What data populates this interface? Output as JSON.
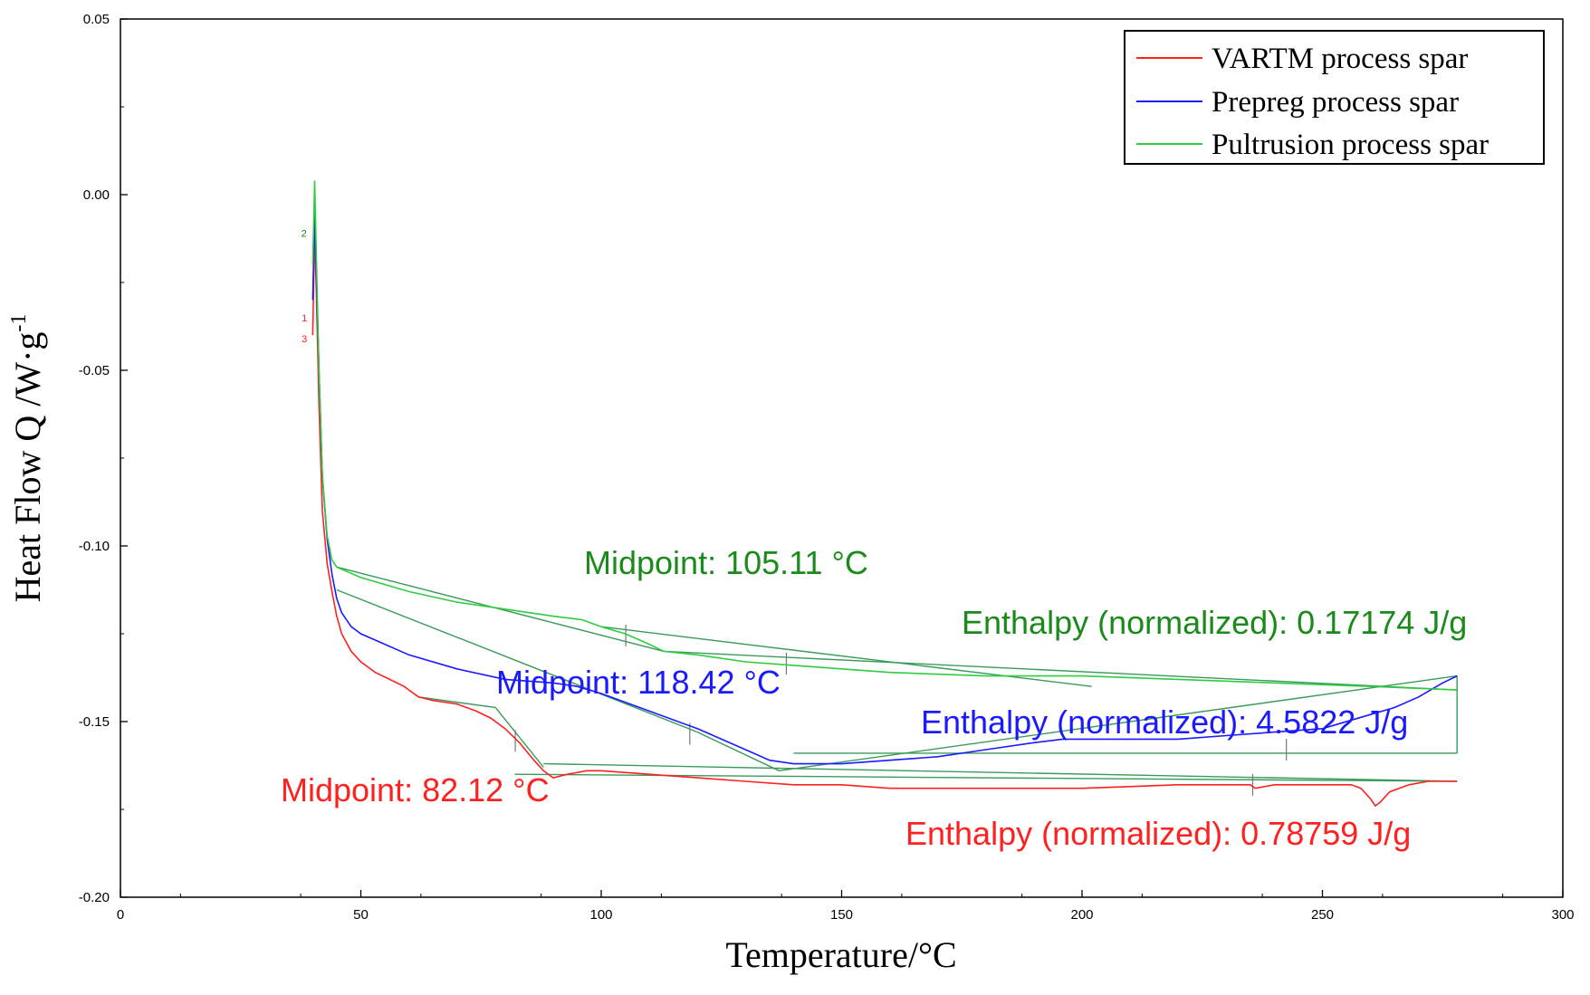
{
  "chart_data": {
    "type": "line",
    "title": "",
    "xlabel": "Temperature/°C",
    "ylabel": "Heat Flow Q /W·g",
    "ylabel_sup": "-1",
    "xlim": [
      0,
      300
    ],
    "ylim": [
      -0.2,
      0.05
    ],
    "xticks": [
      0,
      50,
      100,
      150,
      200,
      250,
      300
    ],
    "xtick_labels": [
      "0",
      "50",
      "100",
      "150",
      "200",
      "250",
      "300"
    ],
    "yticks": [
      0.05,
      0,
      -0.05,
      -0.1,
      -0.15,
      -0.2
    ],
    "ytick_labels": [
      "0.05",
      "0.00",
      "-0.05",
      "-0.10",
      "-0.15",
      "-0.20"
    ],
    "grid": false,
    "legend_position": "top-right",
    "colors": {
      "vartm": "#ff2020",
      "prepreg": "#1a1aff",
      "pultrusion": "#2ecc40",
      "pultrusion_text": "#1a8a1a",
      "fit": "#3a9a5a"
    },
    "series": [
      {
        "name": "VARTM process spar",
        "x": [
          40,
          40.4,
          40.8,
          41.3,
          42,
          43,
          44,
          45,
          46,
          48,
          50,
          53,
          56,
          59,
          60,
          62,
          65,
          70,
          74,
          77,
          80,
          83,
          86,
          88,
          90,
          93,
          97,
          100,
          110,
          120,
          130,
          140,
          150,
          160,
          170,
          180,
          200,
          220,
          230,
          235,
          236,
          240,
          250,
          256,
          258,
          260,
          261,
          262,
          264,
          268,
          272,
          278
        ],
        "values": [
          -0.04,
          -0.01,
          -0.03,
          -0.06,
          -0.09,
          -0.105,
          -0.113,
          -0.12,
          -0.125,
          -0.13,
          -0.133,
          -0.136,
          -0.138,
          -0.14,
          -0.141,
          -0.143,
          -0.144,
          -0.145,
          -0.147,
          -0.149,
          -0.152,
          -0.156,
          -0.161,
          -0.164,
          -0.166,
          -0.165,
          -0.164,
          -0.164,
          -0.165,
          -0.166,
          -0.167,
          -0.168,
          -0.168,
          -0.169,
          -0.169,
          -0.169,
          -0.169,
          -0.168,
          -0.168,
          -0.168,
          -0.169,
          -0.168,
          -0.168,
          -0.168,
          -0.169,
          -0.172,
          -0.174,
          -0.173,
          -0.17,
          -0.168,
          -0.167,
          -0.167
        ]
      },
      {
        "name": "Prepreg process spar",
        "x": [
          40,
          40.4,
          40.8,
          41.3,
          42,
          43,
          44,
          45,
          46,
          48,
          50,
          55,
          60,
          70,
          80,
          90,
          95,
          100,
          110,
          120,
          125,
          130,
          135,
          140,
          150,
          160,
          170,
          180,
          190,
          196,
          210,
          220,
          230,
          240,
          250,
          260,
          265,
          270,
          275,
          278
        ],
        "values": [
          -0.03,
          -0.005,
          -0.025,
          -0.05,
          -0.08,
          -0.098,
          -0.108,
          -0.115,
          -0.119,
          -0.123,
          -0.125,
          -0.128,
          -0.131,
          -0.135,
          -0.138,
          -0.139,
          -0.14,
          -0.142,
          -0.147,
          -0.152,
          -0.155,
          -0.158,
          -0.161,
          -0.162,
          -0.162,
          -0.161,
          -0.16,
          -0.158,
          -0.156,
          -0.155,
          -0.155,
          -0.155,
          -0.154,
          -0.153,
          -0.152,
          -0.148,
          -0.146,
          -0.143,
          -0.139,
          -0.137
        ]
      },
      {
        "name": "Pultrusion process spar",
        "x": [
          40,
          40.4,
          40.8,
          41.3,
          42,
          43,
          44,
          45,
          50,
          60,
          70,
          80,
          90,
          96,
          100,
          105,
          110,
          113,
          120,
          130,
          140,
          150,
          160,
          180,
          200,
          220,
          240,
          260,
          278
        ],
        "values": [
          -0.02,
          0.004,
          -0.02,
          -0.05,
          -0.08,
          -0.097,
          -0.104,
          -0.106,
          -0.109,
          -0.113,
          -0.116,
          -0.118,
          -0.12,
          -0.121,
          -0.123,
          -0.125,
          -0.128,
          -0.13,
          -0.131,
          -0.133,
          -0.134,
          -0.135,
          -0.136,
          -0.137,
          -0.137,
          -0.138,
          -0.139,
          -0.14,
          -0.141
        ]
      }
    ],
    "annotations": [
      {
        "text": "Midpoint: 105.11 °C",
        "series": 2,
        "x": 105.11
      },
      {
        "text": "Enthalpy (normalized): 0.17174 J/g",
        "series": 2
      },
      {
        "text": "Midpoint: 118.42 °C",
        "series": 1,
        "x": 118.42
      },
      {
        "text": "Enthalpy (normalized): 4.5822 J/g",
        "series": 1
      },
      {
        "text": "Midpoint: 82.12 °C",
        "series": 0,
        "x": 82.12
      },
      {
        "text": "Enthalpy (normalized): 0.78759 J/g",
        "series": 0
      }
    ],
    "curve_markers": [
      "2",
      "1",
      "3"
    ]
  }
}
